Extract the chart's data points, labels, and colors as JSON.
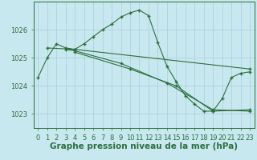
{
  "background_color": "#c8e8f0",
  "grid_color": "#b0d0dc",
  "line_color": "#2d6e3e",
  "marker_color": "#2d6e3e",
  "title": "Graphe pression niveau de la mer (hPa)",
  "title_fontsize": 7.5,
  "tick_fontsize": 6,
  "ylim": [
    1022.5,
    1027.0
  ],
  "xlim": [
    -0.5,
    23.5
  ],
  "yticks": [
    1023,
    1024,
    1025,
    1026
  ],
  "xticks": [
    0,
    1,
    2,
    3,
    4,
    5,
    6,
    7,
    8,
    9,
    10,
    11,
    12,
    13,
    14,
    15,
    16,
    17,
    18,
    19,
    20,
    21,
    22,
    23
  ],
  "series": [
    {
      "x": [
        0,
        1,
        2,
        3,
        4,
        5,
        6,
        7,
        8,
        9,
        10,
        11,
        12,
        13,
        14,
        15,
        16,
        17,
        18,
        19,
        20,
        21,
        22,
        23
      ],
      "y": [
        1024.3,
        1025.0,
        1025.5,
        1025.35,
        1025.3,
        1025.5,
        1025.75,
        1026.0,
        1026.2,
        1026.45,
        1026.6,
        1026.7,
        1026.5,
        1025.55,
        1024.7,
        1024.15,
        1023.65,
        1023.35,
        1023.1,
        1023.1,
        1023.55,
        1024.3,
        1024.45,
        1024.5
      ]
    },
    {
      "x": [
        1,
        4,
        23
      ],
      "y": [
        1025.35,
        1025.3,
        1024.6
      ]
    },
    {
      "x": [
        3,
        4,
        9,
        14,
        19,
        23
      ],
      "y": [
        1025.3,
        1025.25,
        1024.8,
        1024.1,
        1023.15,
        1023.1
      ]
    },
    {
      "x": [
        4,
        10,
        15,
        19,
        23
      ],
      "y": [
        1025.2,
        1024.6,
        1024.0,
        1023.1,
        1023.15
      ]
    }
  ]
}
